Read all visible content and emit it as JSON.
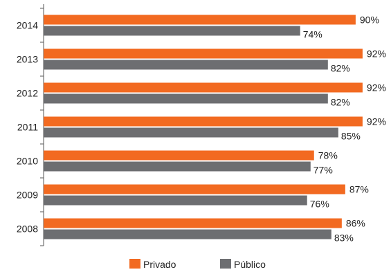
{
  "chart_data": {
    "type": "bar",
    "orientation": "horizontal",
    "categories": [
      "2014",
      "2013",
      "2012",
      "2011",
      "2010",
      "2009",
      "2008"
    ],
    "series": [
      {
        "name": "Privado",
        "color": "#f26a21",
        "values": [
          90,
          92,
          92,
          92,
          78,
          87,
          86
        ],
        "labels": [
          "90%",
          "92%",
          "92%",
          "92%",
          "78%",
          "87%",
          "86%"
        ]
      },
      {
        "name": "Público",
        "color": "#6d6e71",
        "values": [
          74,
          82,
          82,
          85,
          77,
          76,
          83
        ],
        "labels": [
          "74%",
          "82%",
          "82%",
          "85%",
          "77%",
          "76%",
          "83%"
        ]
      }
    ],
    "xlim": [
      0,
      100
    ],
    "grid": false,
    "legend_position": "bottom"
  }
}
